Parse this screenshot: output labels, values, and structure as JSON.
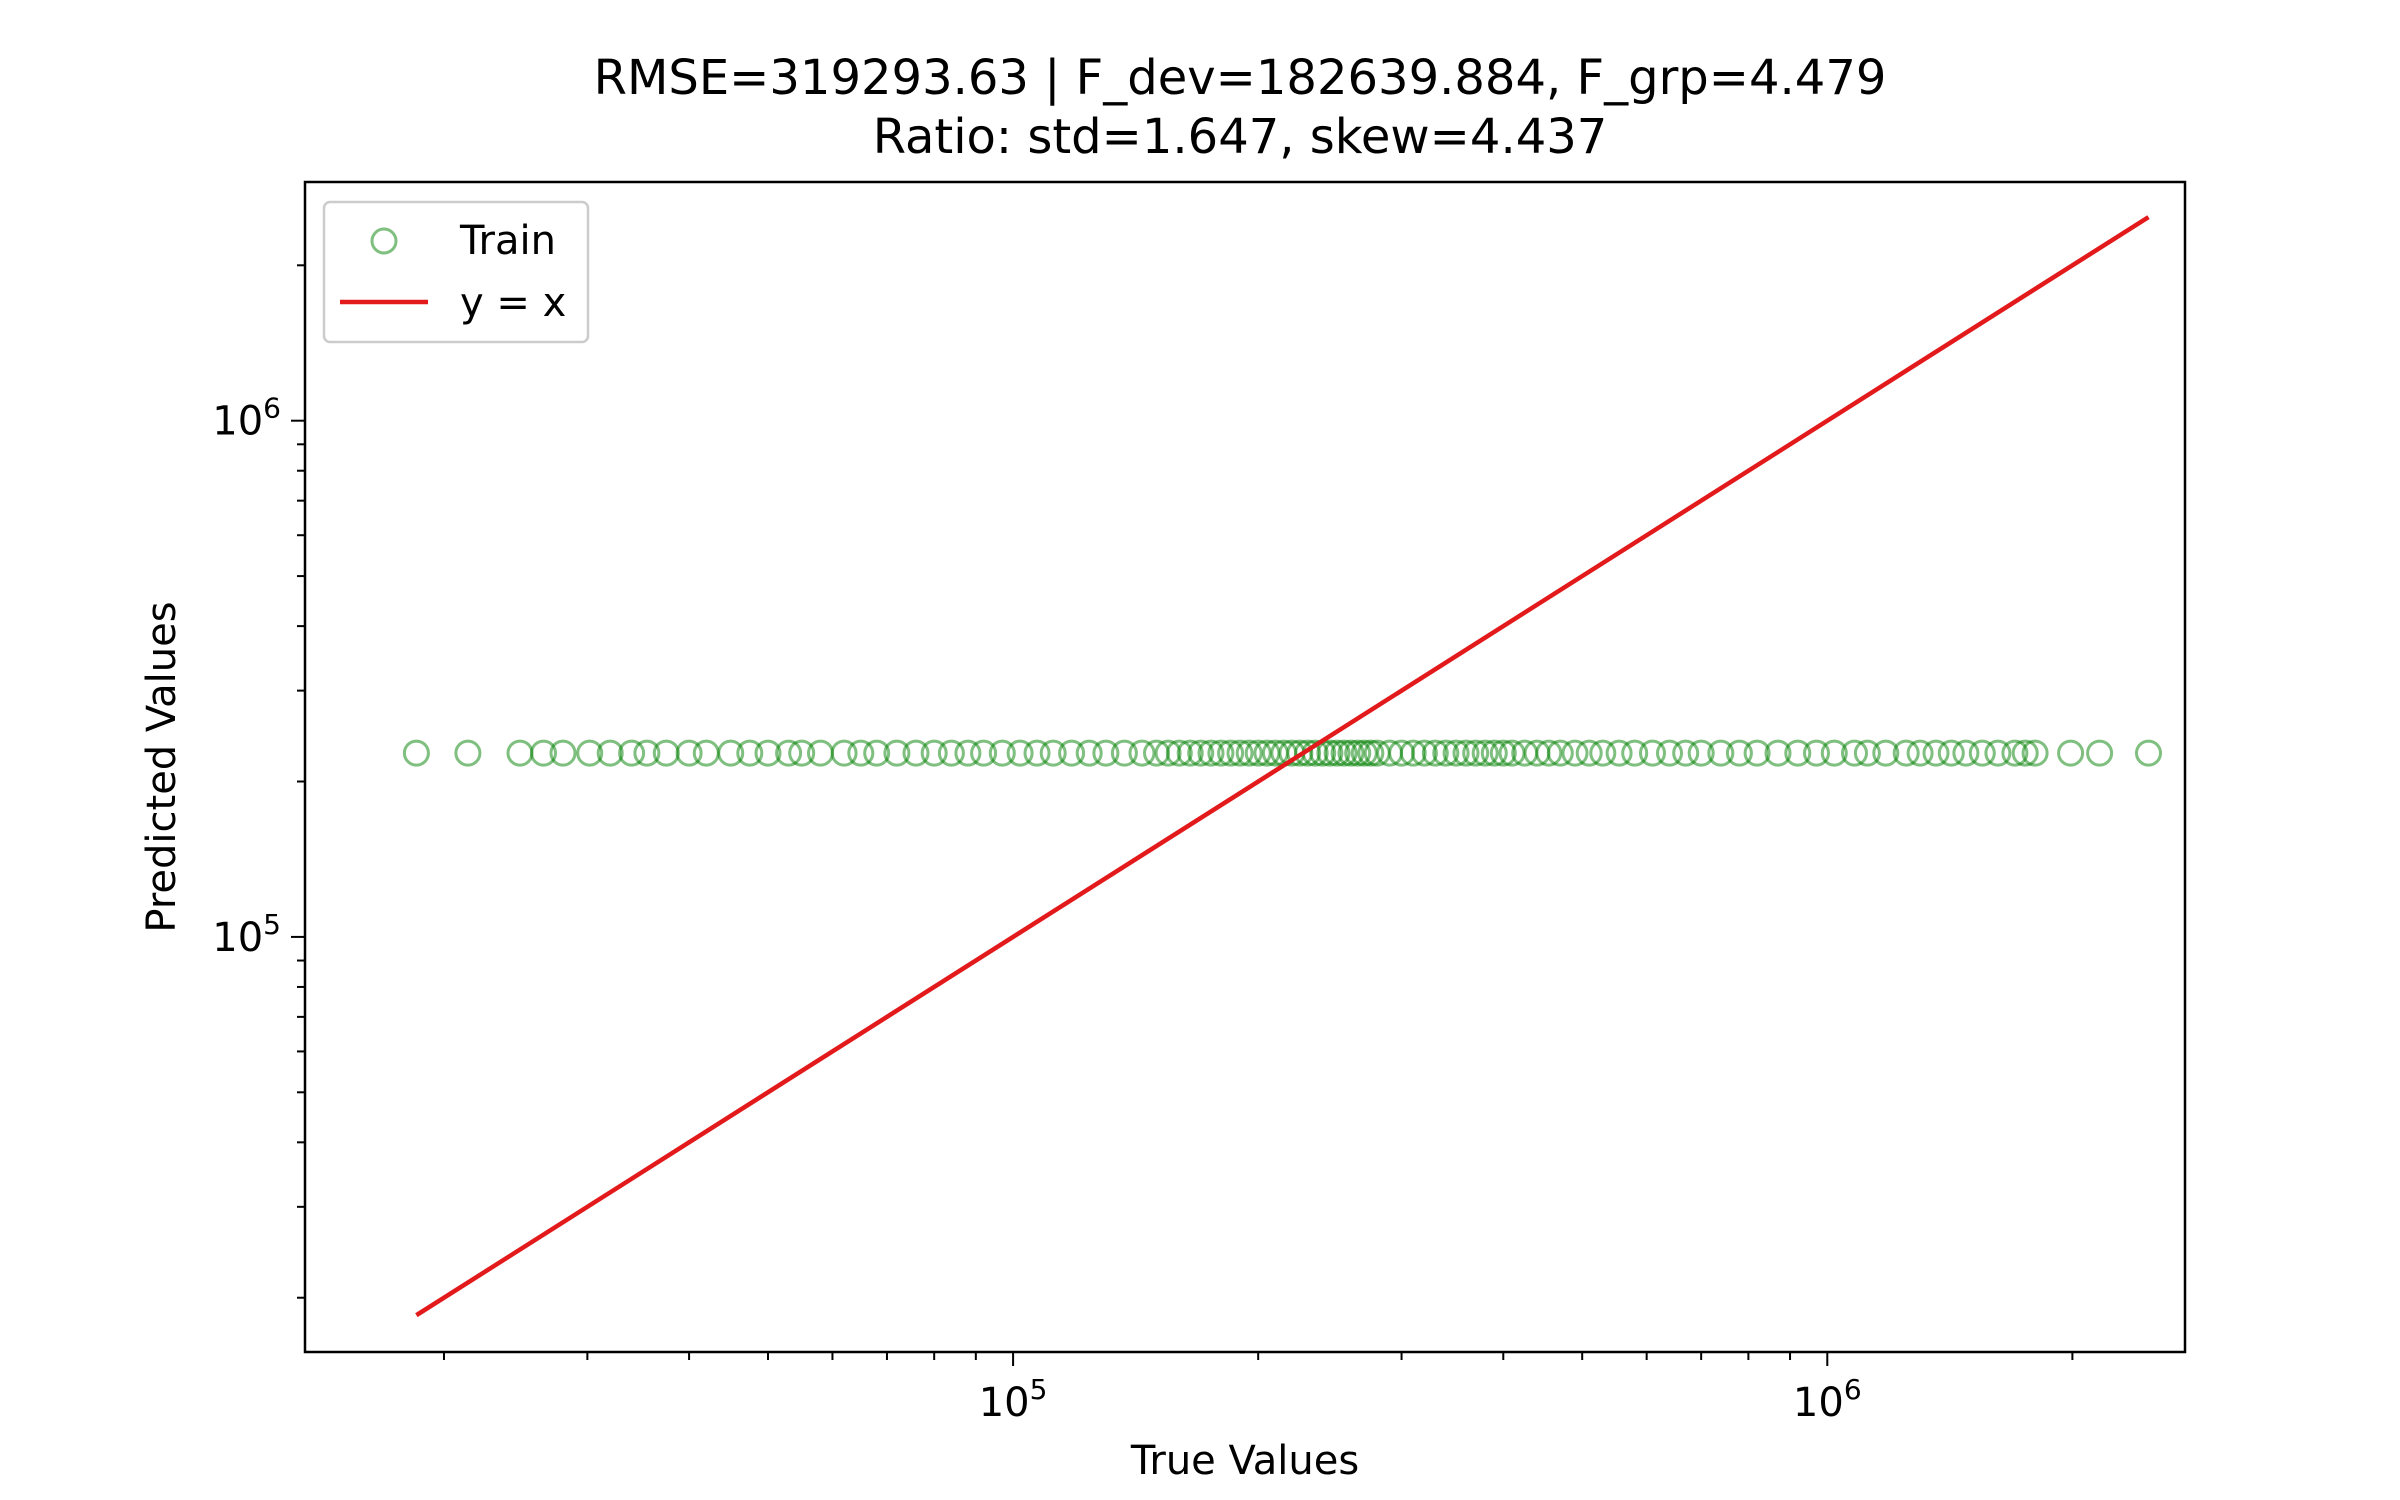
{
  "chart_data": {
    "type": "scatter",
    "title": "RMSE=319293.63 | F_dev=182639.884, F_grp=4.479",
    "subtitle": "Ratio: std=1.647, skew=4.437",
    "xlabel": "True Values",
    "ylabel": "Predicted Values",
    "xscale": "log",
    "yscale": "log",
    "xlim": [
      13500,
      2750000
    ],
    "ylim": [
      15700,
      2900000
    ],
    "xticks": [
      {
        "value": 100000,
        "base": "10",
        "exp": "5"
      },
      {
        "value": 1000000,
        "base": "10",
        "exp": "6"
      }
    ],
    "yticks": [
      {
        "value": 100000,
        "base": "10",
        "exp": "5"
      },
      {
        "value": 1000000,
        "base": "10",
        "exp": "6"
      }
    ],
    "grid": false,
    "legend_position": "top-left",
    "colors": {
      "train": "#008000",
      "reference": "#e31a1c"
    },
    "series": [
      {
        "name": "Train",
        "marker": "hollow-circle",
        "y_constant": 227000,
        "x": [
          18500,
          21400,
          24800,
          26500,
          28000,
          30200,
          32000,
          34000,
          35500,
          37500,
          40000,
          42000,
          45000,
          47500,
          50000,
          53000,
          55000,
          58000,
          62000,
          65000,
          68000,
          72000,
          76000,
          80000,
          84000,
          88000,
          92000,
          97000,
          102000,
          107000,
          112000,
          118000,
          124000,
          130000,
          137000,
          144000,
          150000,
          155000,
          160000,
          165000,
          170000,
          175000,
          180000,
          185000,
          190000,
          195000,
          200000,
          205000,
          210000,
          215000,
          220000,
          225000,
          230000,
          235000,
          240000,
          245000,
          250000,
          255000,
          260000,
          265000,
          270000,
          275000,
          280000,
          290000,
          300000,
          310000,
          320000,
          330000,
          340000,
          350000,
          360000,
          370000,
          380000,
          390000,
          400000,
          410000,
          425000,
          440000,
          455000,
          470000,
          490000,
          510000,
          530000,
          555000,
          580000,
          610000,
          640000,
          670000,
          700000,
          740000,
          780000,
          820000,
          870000,
          920000,
          970000,
          1020000,
          1080000,
          1120000,
          1180000,
          1250000,
          1300000,
          1360000,
          1420000,
          1480000,
          1550000,
          1620000,
          1700000,
          1750000,
          1800000,
          1990000,
          2160000,
          2480000
        ]
      },
      {
        "name": "y = x",
        "line": true,
        "x": [
          18500,
          2480000
        ],
        "y": [
          18500,
          2480000
        ]
      }
    ]
  }
}
